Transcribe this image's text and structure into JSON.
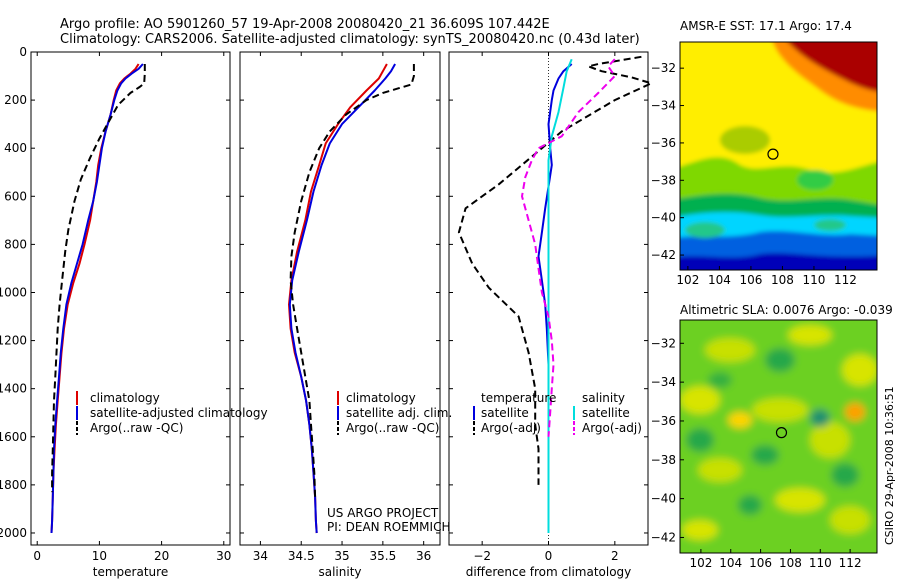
{
  "title_line1": "Argo profile: AO 5901260_57 19-Apr-2008 20080420_21 36.609S 107.442E",
  "title_line2": "Climatology: CARS2006. Satellite-adjusted climatology: synTS_20080420.nc (0.43d later)",
  "credit_line1": "US ARGO PROJECT",
  "credit_line2": "PI: DEAN ROEMMICH",
  "side_stamp": "CSIRO 29-Apr-2008 10:36:51",
  "colors": {
    "climatology": "#dd0000",
    "satellite": "#0000dd",
    "argo": "#000000",
    "salinity_sat": "#00dddd",
    "salinity_argo": "#ee00ee"
  },
  "chart_data": [
    {
      "type": "line",
      "xlabel": "temperature",
      "xlim": [
        -1,
        31
      ],
      "xticks": [
        0,
        10,
        20,
        30
      ],
      "ylim": [
        0,
        2050
      ],
      "yticks": [
        0,
        200,
        400,
        600,
        800,
        1000,
        1200,
        1400,
        1600,
        1800,
        2000
      ],
      "legend": [
        "climatology",
        "satellite-adjusted climatology",
        "Argo(..raw -QC)"
      ],
      "series": [
        {
          "name": "climatology",
          "color": "#dd0000",
          "style": "solid",
          "points": [
            [
              16.3,
              50
            ],
            [
              15.8,
              70
            ],
            [
              15.0,
              90
            ],
            [
              14.0,
              110
            ],
            [
              13.3,
              130
            ],
            [
              12.7,
              160
            ],
            [
              12.3,
              200
            ],
            [
              11.8,
              260
            ],
            [
              11.0,
              330
            ],
            [
              10.3,
              400
            ],
            [
              9.8,
              470
            ],
            [
              9.5,
              540
            ],
            [
              9.0,
              620
            ],
            [
              8.5,
              700
            ],
            [
              7.6,
              800
            ],
            [
              6.8,
              880
            ],
            [
              5.8,
              960
            ],
            [
              4.9,
              1050
            ],
            [
              4.3,
              1150
            ],
            [
              3.9,
              1250
            ],
            [
              3.6,
              1350
            ],
            [
              3.3,
              1450
            ],
            [
              3.0,
              1550
            ],
            [
              2.8,
              1650
            ],
            [
              2.6,
              1750
            ],
            [
              2.5,
              1850
            ],
            [
              2.4,
              1950
            ],
            [
              2.3,
              2000
            ]
          ]
        },
        {
          "name": "satellite-adjusted climatology",
          "color": "#0000dd",
          "style": "solid",
          "points": [
            [
              17.0,
              50
            ],
            [
              16.3,
              70
            ],
            [
              15.2,
              90
            ],
            [
              14.2,
              110
            ],
            [
              13.5,
              130
            ],
            [
              12.9,
              160
            ],
            [
              12.4,
              200
            ],
            [
              11.8,
              260
            ],
            [
              11.0,
              330
            ],
            [
              10.4,
              400
            ],
            [
              10.0,
              470
            ],
            [
              9.6,
              540
            ],
            [
              9.0,
              620
            ],
            [
              8.2,
              700
            ],
            [
              7.3,
              800
            ],
            [
              6.4,
              880
            ],
            [
              5.5,
              960
            ],
            [
              4.7,
              1050
            ],
            [
              4.2,
              1150
            ],
            [
              3.8,
              1250
            ],
            [
              3.5,
              1350
            ],
            [
              3.2,
              1450
            ],
            [
              2.9,
              1550
            ],
            [
              2.7,
              1650
            ],
            [
              2.6,
              1750
            ],
            [
              2.5,
              1850
            ],
            [
              2.4,
              1950
            ],
            [
              2.3,
              2000
            ]
          ]
        },
        {
          "name": "Argo(..raw -QC)",
          "color": "#000000",
          "style": "dashed",
          "points": [
            [
              17.3,
              50
            ],
            [
              17.3,
              90
            ],
            [
              17.2,
              130
            ],
            [
              16.5,
              145
            ],
            [
              15.0,
              170
            ],
            [
              13.0,
              220
            ],
            [
              11.5,
              290
            ],
            [
              10.0,
              360
            ],
            [
              8.5,
              440
            ],
            [
              7.0,
              530
            ],
            [
              6.0,
              620
            ],
            [
              5.0,
              740
            ],
            [
              4.5,
              830
            ],
            [
              4.0,
              950
            ],
            [
              3.6,
              1050
            ],
            [
              3.3,
              1150
            ],
            [
              3.1,
              1250
            ],
            [
              2.9,
              1350
            ],
            [
              2.7,
              1450
            ],
            [
              2.6,
              1550
            ],
            [
              2.5,
              1650
            ],
            [
              2.4,
              1750
            ],
            [
              2.4,
              1830
            ]
          ]
        }
      ]
    },
    {
      "type": "line",
      "xlabel": "salinity",
      "xlim": [
        33.75,
        36.2
      ],
      "xticks": [
        34,
        34.5,
        35,
        35.5,
        36
      ],
      "xticklabels": [
        "34",
        "34.5",
        "35",
        "35.5",
        "36"
      ],
      "ylim": [
        0,
        2050
      ],
      "legend": [
        "climatology",
        "satellite adj. clim.",
        "Argo(..raw -QC)"
      ],
      "series": [
        {
          "name": "climatology",
          "color": "#dd0000",
          "style": "solid",
          "points": [
            [
              35.55,
              50
            ],
            [
              35.5,
              80
            ],
            [
              35.45,
              110
            ],
            [
              35.3,
              160
            ],
            [
              35.1,
              230
            ],
            [
              34.95,
              300
            ],
            [
              34.8,
              380
            ],
            [
              34.72,
              470
            ],
            [
              34.62,
              580
            ],
            [
              34.55,
              700
            ],
            [
              34.45,
              830
            ],
            [
              34.38,
              950
            ],
            [
              34.35,
              1050
            ],
            [
              34.37,
              1150
            ],
            [
              34.42,
              1250
            ],
            [
              34.5,
              1350
            ],
            [
              34.56,
              1450
            ],
            [
              34.6,
              1550
            ],
            [
              34.63,
              1650
            ],
            [
              34.65,
              1750
            ],
            [
              34.67,
              1850
            ],
            [
              34.68,
              1950
            ],
            [
              34.69,
              2000
            ]
          ]
        },
        {
          "name": "satellite adj. clim.",
          "color": "#0000dd",
          "style": "solid",
          "points": [
            [
              35.65,
              50
            ],
            [
              35.6,
              80
            ],
            [
              35.53,
              110
            ],
            [
              35.4,
              160
            ],
            [
              35.2,
              230
            ],
            [
              35.0,
              300
            ],
            [
              34.85,
              380
            ],
            [
              34.75,
              470
            ],
            [
              34.65,
              580
            ],
            [
              34.57,
              700
            ],
            [
              34.47,
              830
            ],
            [
              34.39,
              950
            ],
            [
              34.36,
              1050
            ],
            [
              34.38,
              1150
            ],
            [
              34.43,
              1250
            ],
            [
              34.5,
              1350
            ],
            [
              34.56,
              1450
            ],
            [
              34.6,
              1550
            ],
            [
              34.63,
              1650
            ],
            [
              34.65,
              1750
            ],
            [
              34.67,
              1850
            ],
            [
              34.68,
              1950
            ],
            [
              34.69,
              2000
            ]
          ]
        },
        {
          "name": "Argo(..raw -QC)",
          "color": "#000000",
          "style": "dashed",
          "points": [
            [
              35.88,
              50
            ],
            [
              35.88,
              100
            ],
            [
              35.85,
              135
            ],
            [
              35.7,
              150
            ],
            [
              35.5,
              170
            ],
            [
              35.3,
              200
            ],
            [
              35.05,
              260
            ],
            [
              34.85,
              330
            ],
            [
              34.72,
              400
            ],
            [
              34.6,
              500
            ],
            [
              34.5,
              620
            ],
            [
              34.42,
              750
            ],
            [
              34.38,
              850
            ],
            [
              34.37,
              950
            ],
            [
              34.4,
              1050
            ],
            [
              34.45,
              1150
            ],
            [
              34.5,
              1250
            ],
            [
              34.55,
              1350
            ],
            [
              34.6,
              1450
            ],
            [
              34.62,
              1550
            ],
            [
              34.64,
              1650
            ],
            [
              34.66,
              1750
            ],
            [
              34.67,
              1850
            ]
          ]
        }
      ]
    },
    {
      "type": "line",
      "xlabel": "difference from climatology",
      "xlim": [
        -3,
        3
      ],
      "xticks": [
        -2,
        0,
        2
      ],
      "xticklabels": [
        "−2",
        "0",
        "2"
      ],
      "ylim": [
        0,
        2050
      ],
      "legend_groups": [
        {
          "title": "temperature",
          "entries": [
            "satellite",
            "Argo(-adj)"
          ]
        },
        {
          "title": "salinity",
          "entries": [
            "satellite",
            "Argo(-adj)"
          ]
        }
      ],
      "series": [
        {
          "name": "temperature satellite",
          "color": "#0000dd",
          "style": "solid",
          "points": [
            [
              0.7,
              50
            ],
            [
              0.45,
              80
            ],
            [
              0.3,
              110
            ],
            [
              0.15,
              160
            ],
            [
              0.1,
              200
            ],
            [
              0.0,
              300
            ],
            [
              0.05,
              400
            ],
            [
              0.1,
              470
            ],
            [
              0.0,
              560
            ],
            [
              -0.1,
              650
            ],
            [
              -0.2,
              750
            ],
            [
              -0.3,
              850
            ],
            [
              -0.2,
              950
            ],
            [
              -0.1,
              1050
            ],
            [
              -0.05,
              1150
            ],
            [
              0.0,
              1300
            ],
            [
              0.0,
              1500
            ],
            [
              0.0,
              1700
            ],
            [
              0.0,
              2000
            ]
          ]
        },
        {
          "name": "temperature Argo(-adj)",
          "color": "#000000",
          "style": "dashed",
          "points": [
            [
              2.8,
              20
            ],
            [
              1.5,
              50
            ],
            [
              1.2,
              60
            ],
            [
              1.6,
              80
            ],
            [
              2.5,
              105
            ],
            [
              3.1,
              130
            ],
            [
              2.0,
              200
            ],
            [
              0.4,
              330
            ],
            [
              -0.2,
              400
            ],
            [
              -1.5,
              550
            ],
            [
              -2.5,
              650
            ],
            [
              -2.7,
              750
            ],
            [
              -2.3,
              880
            ],
            [
              -1.8,
              980
            ],
            [
              -0.9,
              1100
            ],
            [
              -0.6,
              1250
            ],
            [
              -0.4,
              1400
            ],
            [
              -0.4,
              1550
            ],
            [
              -0.3,
              1650
            ],
            [
              -0.3,
              1800
            ]
          ]
        },
        {
          "name": "salinity satellite",
          "color": "#00dddd",
          "style": "solid",
          "points": [
            [
              0.7,
              30
            ],
            [
              0.55,
              80
            ],
            [
              0.45,
              150
            ],
            [
              0.3,
              250
            ],
            [
              0.1,
              350
            ],
            [
              0.0,
              450
            ],
            [
              0.0,
              600
            ],
            [
              0.0,
              800
            ],
            [
              0.0,
              1000
            ],
            [
              0.0,
              1300
            ],
            [
              0.0,
              1600
            ],
            [
              0.0,
              2000
            ]
          ]
        },
        {
          "name": "salinity Argo(-adj)",
          "color": "#ee00ee",
          "style": "dashed",
          "points": [
            [
              2.0,
              30
            ],
            [
              1.8,
              60
            ],
            [
              2.0,
              100
            ],
            [
              1.5,
              170
            ],
            [
              0.9,
              250
            ],
            [
              0.4,
              350
            ],
            [
              -0.3,
              400
            ],
            [
              -0.5,
              450
            ],
            [
              -0.7,
              520
            ],
            [
              -0.8,
              600
            ],
            [
              -0.6,
              700
            ],
            [
              -0.4,
              800
            ],
            [
              -0.3,
              900
            ],
            [
              -0.2,
              1000
            ],
            [
              0.0,
              1100
            ],
            [
              0.1,
              1200
            ],
            [
              0.15,
              1300
            ],
            [
              0.1,
              1400
            ],
            [
              0.05,
              1500
            ],
            [
              0.0,
              1600
            ]
          ]
        }
      ]
    },
    {
      "type": "heatmap",
      "title": "AMSR-E SST: 17.1 Argo: 17.4",
      "xlim": [
        101.5,
        114
      ],
      "ylim": [
        -42.8,
        -30.6
      ],
      "xticks": [
        102,
        104,
        106,
        108,
        110,
        112
      ],
      "yticks": [
        -32,
        -34,
        -36,
        -38,
        -40,
        -42
      ],
      "yticklabels": [
        "−32",
        "−34",
        "−36",
        "−38",
        "−40",
        "−42"
      ],
      "marker": [
        107.4,
        -36.6
      ]
    },
    {
      "type": "heatmap",
      "title": "Altimetric SLA: 0.0076 Argo: -0.039",
      "xlim": [
        100.6,
        113.8
      ],
      "ylim": [
        -42.8,
        -30.8
      ],
      "xticks": [
        102,
        104,
        106,
        108,
        110,
        112
      ],
      "yticks": [
        -32,
        -34,
        -36,
        -38,
        -40,
        -42
      ],
      "yticklabels": [
        "−32",
        "−34",
        "−36",
        "−38",
        "−40",
        "−42"
      ],
      "marker": [
        107.4,
        -36.6
      ]
    }
  ]
}
